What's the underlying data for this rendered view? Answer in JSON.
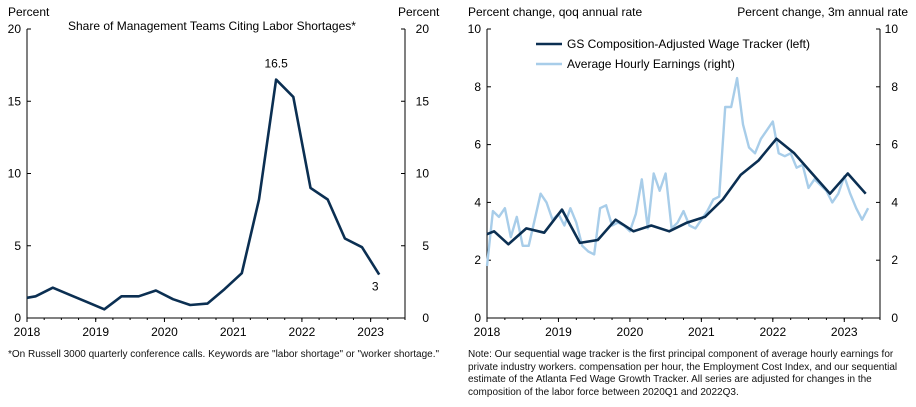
{
  "chart_data": [
    {
      "type": "line",
      "title": "Share of Management Teams Citing Labor Shortages*",
      "ylabel_left": "Percent",
      "ylabel_right": "Percent",
      "ylim": [
        0,
        20
      ],
      "yticks": [
        "0",
        "5",
        "10",
        "15",
        "20"
      ],
      "xlim": [
        2018.0,
        2023.5
      ],
      "xticks": [
        "2018",
        "2019",
        "2020",
        "2021",
        "2022",
        "2023"
      ],
      "series": [
        {
          "name": "Share of Management Teams Citing Labor Shortages",
          "color": "#0b2f52",
          "x": [
            2018.0,
            2018.125,
            2018.375,
            2018.625,
            2018.875,
            2019.125,
            2019.375,
            2019.625,
            2019.875,
            2020.125,
            2020.375,
            2020.625,
            2020.875,
            2021.125,
            2021.375,
            2021.625,
            2021.875,
            2022.125,
            2022.375,
            2022.625,
            2022.875,
            2023.125
          ],
          "values": [
            1.4,
            1.5,
            2.1,
            1.6,
            1.1,
            0.6,
            1.5,
            1.5,
            1.9,
            1.3,
            0.9,
            1.0,
            2.0,
            3.1,
            8.2,
            16.5,
            15.3,
            9.0,
            8.2,
            5.5,
            4.9,
            3.0
          ]
        }
      ],
      "annotations": [
        {
          "text": "16.5",
          "x": 2021.625,
          "y": 16.5
        },
        {
          "text": "3",
          "x": 2023.125,
          "y": 3.0
        }
      ],
      "footnote": "*On Russell 3000 quarterly conference calls. Keywords are \"labor shortage\" or \"worker shortage.\""
    },
    {
      "type": "line",
      "ylabel_left": "Percent change, qoq annual rate",
      "ylabel_right": "Percent change, 3m annual rate",
      "ylim": [
        0,
        10
      ],
      "yticks": [
        "0",
        "2",
        "4",
        "6",
        "8",
        "10"
      ],
      "xlim": [
        2018.0,
        2023.5
      ],
      "xticks": [
        "2018",
        "2019",
        "2020",
        "2021",
        "2022",
        "2023"
      ],
      "series": [
        {
          "name": "GS Composition-Adjusted Wage Tracker (left)",
          "color": "#0b2f52",
          "x": [
            2018.0,
            2018.1,
            2018.3,
            2018.55,
            2018.8,
            2019.05,
            2019.3,
            2019.55,
            2019.8,
            2020.05,
            2020.3,
            2020.55,
            2020.8,
            2021.05,
            2021.3,
            2021.55,
            2021.8,
            2022.05,
            2022.3,
            2022.55,
            2022.8,
            2023.05,
            2023.3
          ],
          "values": [
            2.9,
            3.0,
            2.55,
            3.1,
            2.95,
            3.75,
            2.6,
            2.7,
            3.4,
            3.0,
            3.2,
            3.0,
            3.3,
            3.5,
            4.1,
            4.95,
            5.45,
            6.2,
            5.7,
            5.0,
            4.3,
            5.0,
            4.3
          ]
        },
        {
          "name": "Average Hourly Earnings (right)",
          "color": "#a8cde9",
          "x": [
            2018.0,
            2018.083,
            2018.167,
            2018.25,
            2018.333,
            2018.417,
            2018.5,
            2018.583,
            2018.667,
            2018.75,
            2018.833,
            2018.917,
            2019.0,
            2019.083,
            2019.167,
            2019.25,
            2019.333,
            2019.417,
            2019.5,
            2019.583,
            2019.667,
            2019.75,
            2019.833,
            2019.917,
            2020.0,
            2020.083,
            2020.167,
            2020.25,
            2020.333,
            2020.417,
            2020.5,
            2020.583,
            2020.667,
            2020.75,
            2020.833,
            2020.917,
            2021.0,
            2021.083,
            2021.167,
            2021.25,
            2021.333,
            2021.417,
            2021.5,
            2021.583,
            2021.667,
            2021.75,
            2021.833,
            2021.917,
            2022.0,
            2022.083,
            2022.167,
            2022.25,
            2022.333,
            2022.417,
            2022.5,
            2022.583,
            2022.667,
            2022.75,
            2022.833,
            2022.917,
            2023.0,
            2023.083,
            2023.167,
            2023.25,
            2023.333
          ],
          "values": [
            1.8,
            3.7,
            3.5,
            3.8,
            2.8,
            3.5,
            2.5,
            2.5,
            3.4,
            4.3,
            4.0,
            3.4,
            3.6,
            3.2,
            3.8,
            3.3,
            2.5,
            2.3,
            2.2,
            3.8,
            3.9,
            3.2,
            3.3,
            3.2,
            3.0,
            3.6,
            4.8,
            3.1,
            5.0,
            4.4,
            5.0,
            3.1,
            3.3,
            3.7,
            3.2,
            3.1,
            3.4,
            3.7,
            4.1,
            4.2,
            7.3,
            7.3,
            8.3,
            6.7,
            5.9,
            5.7,
            6.2,
            6.5,
            6.8,
            5.7,
            5.6,
            5.7,
            5.2,
            5.3,
            4.5,
            4.8,
            4.6,
            4.4,
            4.0,
            4.3,
            4.9,
            4.3,
            3.8,
            3.4,
            3.8
          ]
        }
      ],
      "footnote": "Note: Our sequential wage tracker is the first principal component of average hourly earnings for private industry workers. compensation per hour, the Employment  Cost Index, and our sequential estimate of the Atlanta Fed Wage Growth Tracker. All series are adjusted for changes in the composition of the labor force between 2020Q1 and 2022Q3."
    }
  ]
}
